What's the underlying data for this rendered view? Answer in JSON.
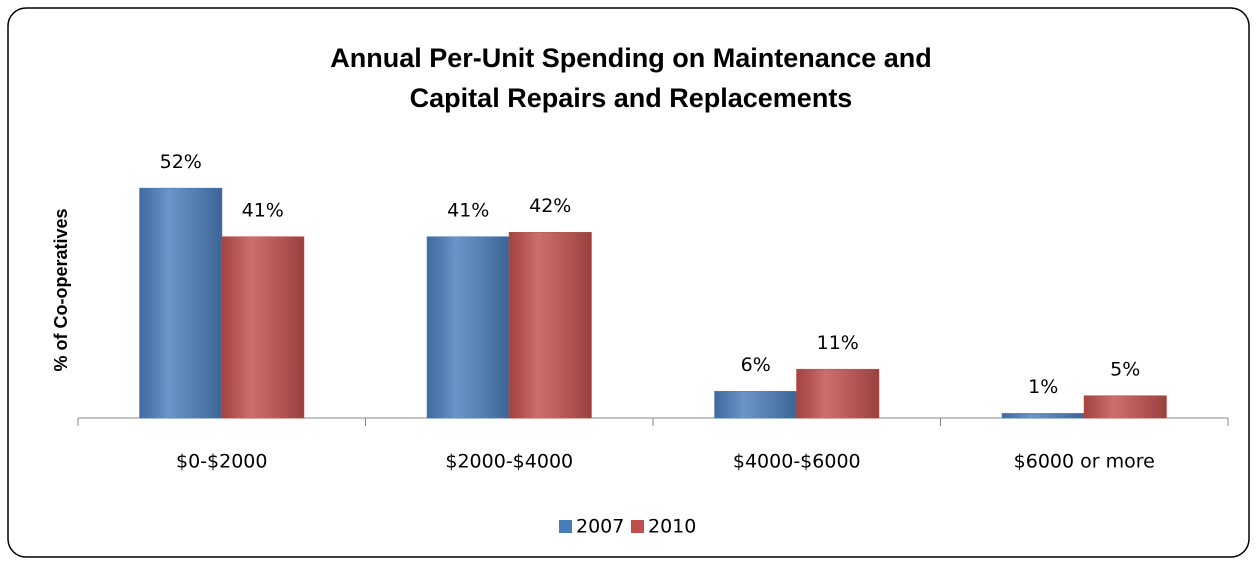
{
  "chart_data": {
    "type": "bar",
    "title": [
      "Annual Per-Unit Spending on Maintenance and",
      "Capital Repairs and Replacements"
    ],
    "ylabel": "% of Co-operatives",
    "categories": [
      "$0-$2000",
      "$2000-$4000",
      "$4000-$6000",
      "$6000 or more"
    ],
    "series": [
      {
        "name": "2007",
        "color": "#4a7ebb",
        "values": [
          52,
          41,
          6,
          1
        ],
        "value_labels": [
          "52%",
          "41%",
          "6%",
          "1%"
        ]
      },
      {
        "name": "2010",
        "color": "#c0504d",
        "values": [
          41,
          42,
          11,
          5
        ],
        "value_labels": [
          "41%",
          "42%",
          "11%",
          "5%"
        ]
      }
    ],
    "ylim": [
      0,
      60
    ],
    "legend": "bottom"
  }
}
